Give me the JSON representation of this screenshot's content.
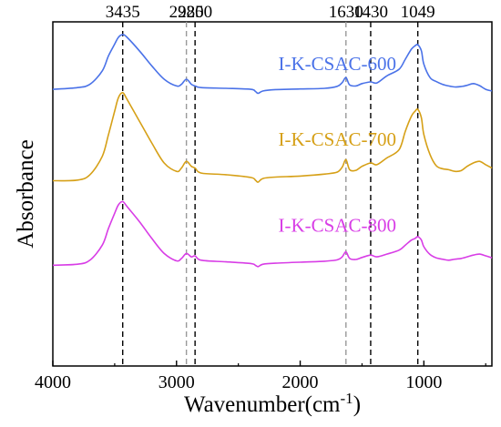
{
  "chart_data": {
    "type": "line",
    "xlabel_main": "Wavenumber(cm",
    "xlabel_sup": "-1",
    "xlabel_close": ")",
    "ylabel": "Absorbance",
    "xlim": [
      4000,
      450
    ],
    "x_reversed": true,
    "ylim": [
      0,
      100
    ],
    "y_ticks_shown": false,
    "x_ticks": [
      4000,
      3000,
      2000,
      1000
    ],
    "x_tick_labels": [
      "4000",
      "3000",
      "2000",
      "1000"
    ],
    "reference_lines": [
      {
        "x": 3435,
        "label": "3435",
        "color": "#000000"
      },
      {
        "x": 2920,
        "label": "2920",
        "color": "#999999"
      },
      {
        "x": 2850,
        "label": "2850",
        "color": "#000000"
      },
      {
        "x": 1630,
        "label": "1630",
        "color": "#999999"
      },
      {
        "x": 1430,
        "label": "1430",
        "color": "#000000"
      },
      {
        "x": 1049,
        "label": "1049",
        "color": "#000000"
      }
    ],
    "x": [
      4000,
      3800,
      3700,
      3600,
      3550,
      3500,
      3470,
      3435,
      3400,
      3300,
      3200,
      3100,
      3000,
      2960,
      2920,
      2880,
      2850,
      2800,
      2600,
      2400,
      2360,
      2340,
      2300,
      2200,
      2000,
      1800,
      1700,
      1660,
      1630,
      1600,
      1550,
      1500,
      1430,
      1380,
      1300,
      1200,
      1150,
      1100,
      1070,
      1049,
      1020,
      1000,
      950,
      900,
      850,
      800,
      750,
      700,
      650,
      600,
      550,
      500,
      450
    ],
    "series": [
      {
        "name": "I-K-CSAC-600",
        "color": "#4a72e8",
        "label_color": "#4a72e8",
        "values": [
          81.5,
          82.0,
          83.0,
          87.0,
          91.5,
          95.0,
          97.0,
          97.8,
          97.0,
          93.0,
          88.5,
          84.5,
          82.5,
          83.0,
          84.5,
          83.0,
          82.5,
          82.0,
          81.8,
          81.5,
          80.8,
          80.3,
          81.0,
          81.4,
          81.6,
          81.8,
          82.4,
          83.5,
          85.0,
          82.8,
          82.5,
          83.2,
          83.7,
          83.4,
          85.5,
          87.5,
          90.5,
          93.5,
          94.5,
          94.8,
          93.0,
          89.0,
          85.0,
          83.8,
          83.0,
          82.5,
          82.2,
          82.3,
          82.7,
          83.2,
          82.6,
          81.5,
          81.0
        ],
        "label_x": 1700,
        "label_y": 87.2
      },
      {
        "name": "I-K-CSAC-700",
        "color": "#d6a017",
        "label_color": "#d6a017",
        "values": [
          54.2,
          54.4,
          56.0,
          61.5,
          68.0,
          75.0,
          79.0,
          80.5,
          78.5,
          72.0,
          65.5,
          59.5,
          57.0,
          58.0,
          60.0,
          58.5,
          58.0,
          56.5,
          56.0,
          55.2,
          54.3,
          53.8,
          54.9,
          55.3,
          55.6,
          56.2,
          56.8,
          58.3,
          60.5,
          57.5,
          57.3,
          58.5,
          59.5,
          59.0,
          61.0,
          63.5,
          69.0,
          73.5,
          75.0,
          75.5,
          73.0,
          68.0,
          62.0,
          58.7,
          57.8,
          57.5,
          57.0,
          57.2,
          58.5,
          59.5,
          60.0,
          59.0,
          58.0
        ],
        "label_x": 1700,
        "label_y": 64.7
      },
      {
        "name": "I-K-CSAC-800",
        "color": "#d83de6",
        "label_color": "#d83de6",
        "values": [
          29.0,
          29.3,
          30.5,
          35.0,
          40.0,
          44.5,
          47.0,
          48.0,
          46.5,
          42.0,
          37.0,
          32.5,
          30.3,
          31.0,
          32.5,
          31.5,
          31.8,
          30.5,
          30.0,
          29.5,
          28.9,
          28.6,
          29.3,
          29.6,
          29.9,
          30.2,
          30.6,
          31.5,
          33.0,
          31.0,
          30.7,
          31.3,
          32.0,
          31.5,
          32.3,
          33.5,
          35.0,
          36.5,
          37.0,
          37.5,
          36.5,
          34.5,
          32.2,
          31.2,
          30.8,
          30.5,
          30.8,
          31.0,
          31.5,
          32.0,
          32.3,
          31.8,
          31.2
        ],
        "label_x": 1700,
        "label_y": 39.0
      }
    ]
  }
}
